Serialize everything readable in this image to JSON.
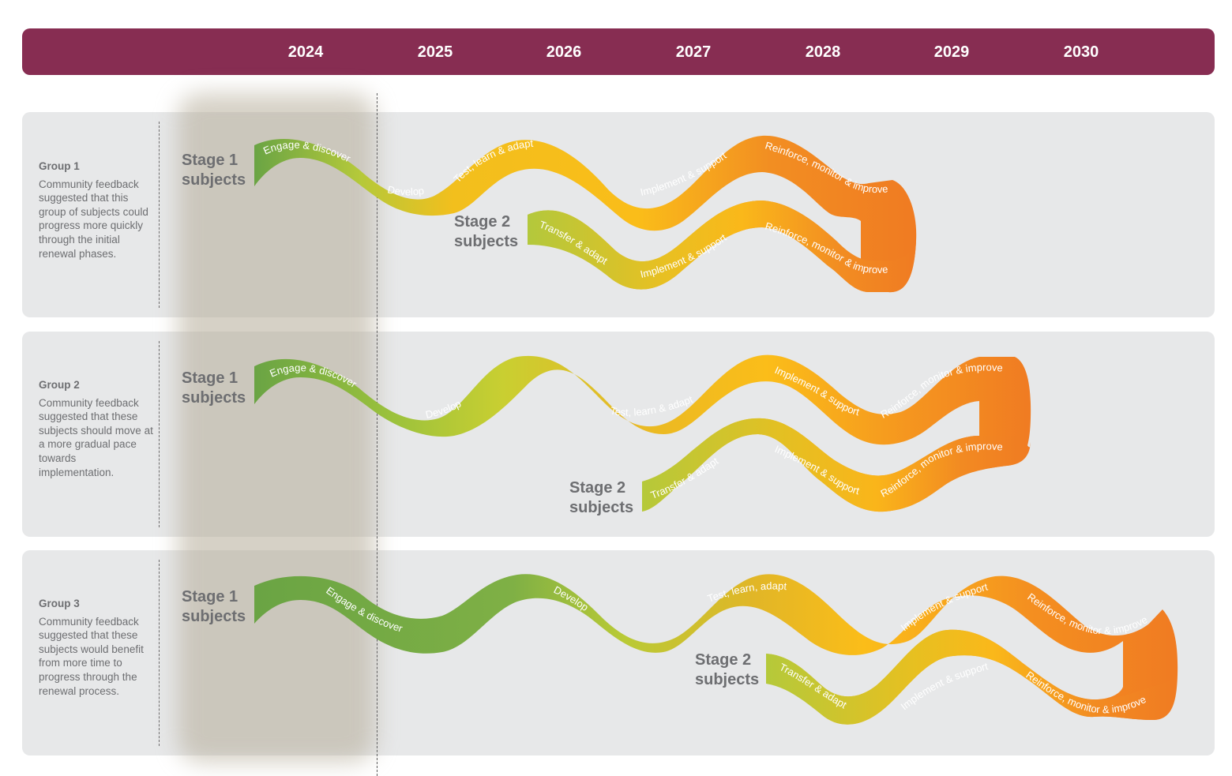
{
  "years": [
    "2024",
    "2025",
    "2026",
    "2027",
    "2028",
    "2029",
    "2030"
  ],
  "colors": {
    "header": "#872d52",
    "panel": "#e7e8e9",
    "green": "#6ba446",
    "lime": "#c8cf32",
    "yellow": "#f9b71b",
    "orange": "#f07c22",
    "text": "#6d6e71"
  },
  "groups": [
    {
      "title": "Group 1",
      "description": "Community feedback suggested that this group of subjects could progress more quickly through the initial renewal phases.",
      "stage1_label": [
        "Stage 1",
        "subjects"
      ],
      "stage2_label": [
        "Stage 2",
        "subjects"
      ],
      "stage1_phases": [
        "Engage & discover",
        "Develop",
        "Test, learn & adapt",
        "Implement & support",
        "Reinforce, monitor & improve"
      ],
      "stage2_phases": [
        "Transfer & adapt",
        "Implement & support",
        "Reinforce, monitor & improve"
      ]
    },
    {
      "title": "Group 2",
      "description": "Community feedback suggested that these subjects should move at a more gradual pace towards implementation.",
      "stage1_label": [
        "Stage 1",
        "subjects"
      ],
      "stage2_label": [
        "Stage 2",
        "subjects"
      ],
      "stage1_phases": [
        "Engage & discover",
        "Develop",
        "Test, learn & adapt",
        "Implement & support",
        "Reinforce, monitor & improve"
      ],
      "stage2_phases": [
        "Transfer & adapt",
        "Implement & support",
        "Reinforce, monitor & improve"
      ]
    },
    {
      "title": "Group 3",
      "description": "Community feedback suggested that these subjects would benefit from more time to progress through the renewal process.",
      "stage1_label": [
        "Stage 1",
        "subjects"
      ],
      "stage2_label": [
        "Stage 2",
        "subjects"
      ],
      "stage1_phases": [
        "Engage & discover",
        "Develop",
        "Test, learn, adapt",
        "Implement & support",
        "Reinforce, monitor & improve"
      ],
      "stage2_phases": [
        "Transfer & adapt",
        "Implement & support",
        "Reinforce, monitor & improve"
      ]
    }
  ]
}
